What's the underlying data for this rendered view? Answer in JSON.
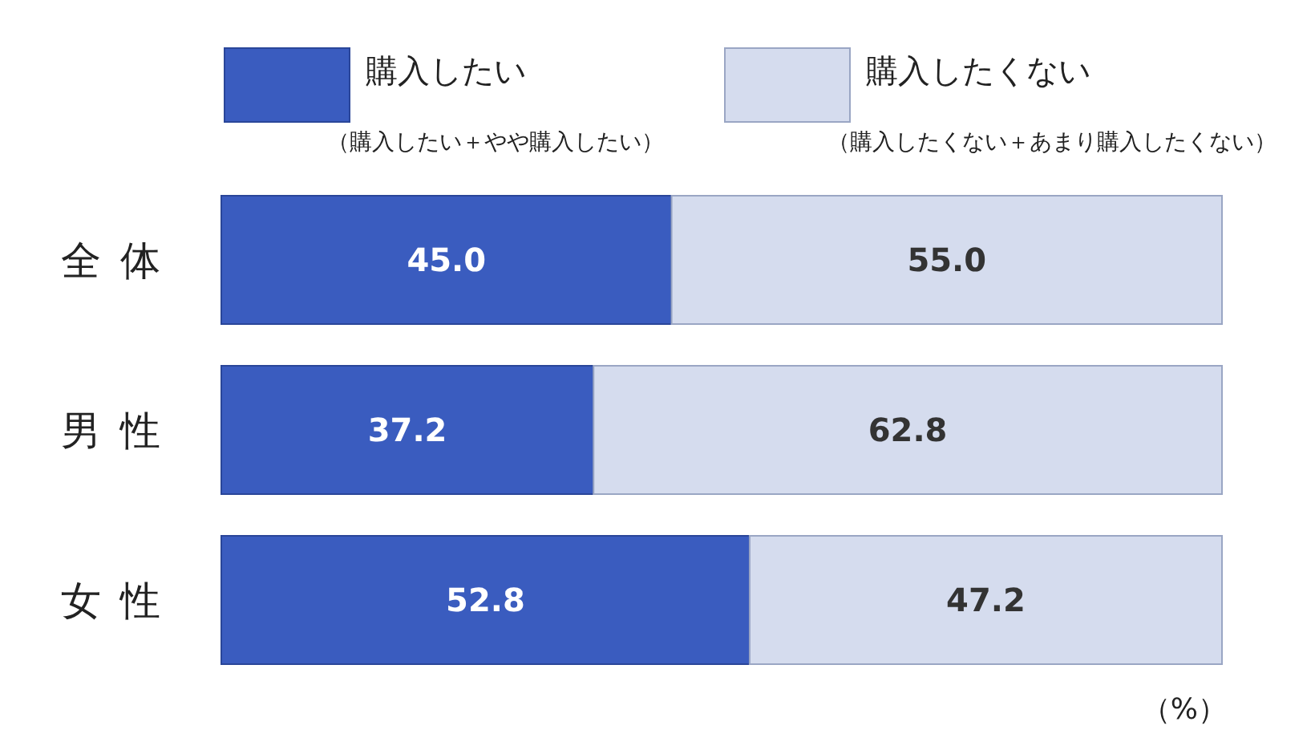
{
  "chart_data": {
    "type": "bar",
    "orientation": "horizontal",
    "stacked": true,
    "categories": [
      "全体",
      "男性",
      "女性"
    ],
    "series": [
      {
        "name": "購入したい",
        "color": "#3a5cbf",
        "values": [
          45.0,
          37.2,
          52.8
        ],
        "value_labels": [
          "45.0",
          "37.2",
          "52.8"
        ]
      },
      {
        "name": "購入したくない",
        "color": "#d5dcee",
        "values": [
          55.0,
          62.8,
          47.2
        ],
        "value_labels": [
          "55.0",
          "62.8",
          "47.2"
        ]
      }
    ],
    "xlim": [
      0,
      100
    ],
    "tick_labels": "y",
    "legend": "top",
    "annotations": [
      "（購入したい＋やや購入したい）",
      "（購入したくない＋あまり購入したくない）",
      "（%）"
    ]
  }
}
